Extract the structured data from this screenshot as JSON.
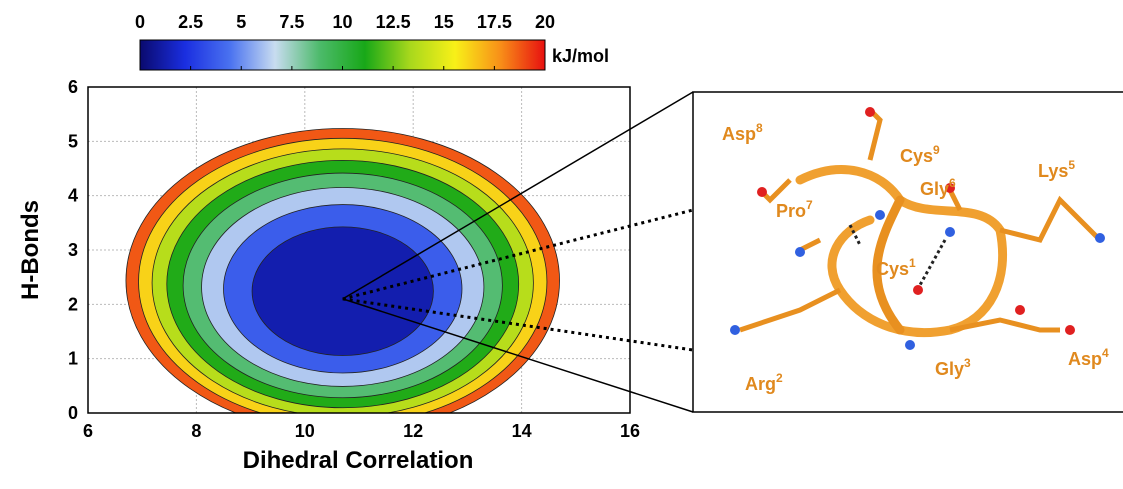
{
  "chart_data": {
    "type": "contour",
    "xlabel": "Dihedral Correlation",
    "ylabel": "H-Bonds",
    "xlim": [
      6,
      16
    ],
    "ylim": [
      0,
      6
    ],
    "xticks": [
      6,
      8,
      10,
      12,
      14,
      16
    ],
    "yticks": [
      0,
      1,
      2,
      3,
      4,
      5,
      6
    ],
    "grid": true,
    "levels": [
      20,
      17.5,
      15,
      12.5,
      10,
      7.5,
      5,
      2.5
    ],
    "minimum": {
      "x": 10.7,
      "y": 2.1
    },
    "colorbar": {
      "label": "kJ/mol",
      "lim": [
        0,
        20
      ],
      "ticks": [
        0,
        2.5,
        5,
        7.5,
        10,
        12.5,
        15,
        17.5,
        20
      ],
      "colormap": [
        "#0a0a6e",
        "#1a2ee0",
        "#4a72f0",
        "#c8dcf0",
        "#4cba6a",
        "#18a818",
        "#a8d81c",
        "#f8f018",
        "#f89018",
        "#e81010"
      ]
    },
    "inset": {
      "residues": [
        {
          "name": "Asp",
          "index": "8"
        },
        {
          "name": "Cys",
          "index": "9"
        },
        {
          "name": "Gly",
          "index": "6"
        },
        {
          "name": "Lys",
          "index": "5"
        },
        {
          "name": "Pro",
          "index": "7"
        },
        {
          "name": "Cys",
          "index": "1"
        },
        {
          "name": "Arg",
          "index": "2"
        },
        {
          "name": "Gly",
          "index": "3"
        },
        {
          "name": "Asp",
          "index": "4"
        }
      ]
    }
  }
}
